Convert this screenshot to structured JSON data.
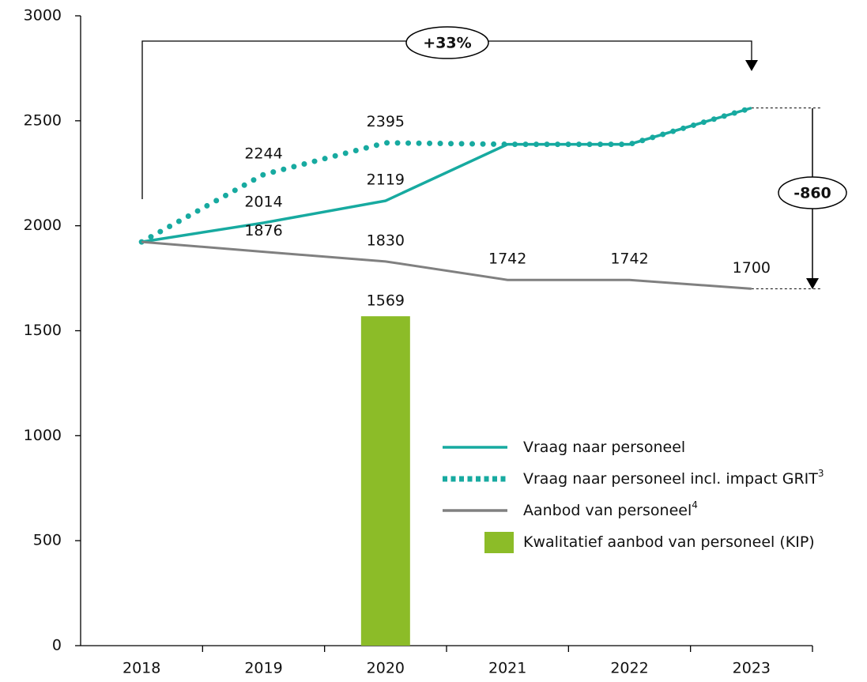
{
  "chart_data": {
    "type": "line",
    "categories": [
      "2018",
      "2019",
      "2020",
      "2021",
      "2022",
      "2023"
    ],
    "series": [
      {
        "name": "Vraag naar personeel",
        "color": "#17aaa0",
        "style": "solid",
        "values": [
          1923,
          2014,
          2119,
          2388,
          2388,
          2561
        ]
      },
      {
        "name": "Vraag naar personeel incl. impact GRIT",
        "footnote": "3",
        "color": "#17aaa0",
        "style": "dotted",
        "values": [
          1923,
          2244,
          2395,
          2388,
          2388,
          2561
        ]
      },
      {
        "name": "Aanbod van personeel",
        "footnote": "4",
        "color": "#808080",
        "style": "solid",
        "values": [
          1923,
          1876,
          1830,
          1742,
          1742,
          1700
        ]
      },
      {
        "name": "Kwalitatief aanbod van personeel (KIP)",
        "color": "#8cbc28",
        "type": "bar",
        "values": [
          null,
          null,
          1569,
          null,
          null,
          null
        ]
      }
    ],
    "annotations": [
      {
        "text": "+33%"
      },
      {
        "text": "-860"
      }
    ],
    "ylim": [
      0,
      3000
    ],
    "yticks": [
      0,
      500,
      1000,
      1500,
      2000,
      2500,
      3000
    ],
    "grid": false
  }
}
